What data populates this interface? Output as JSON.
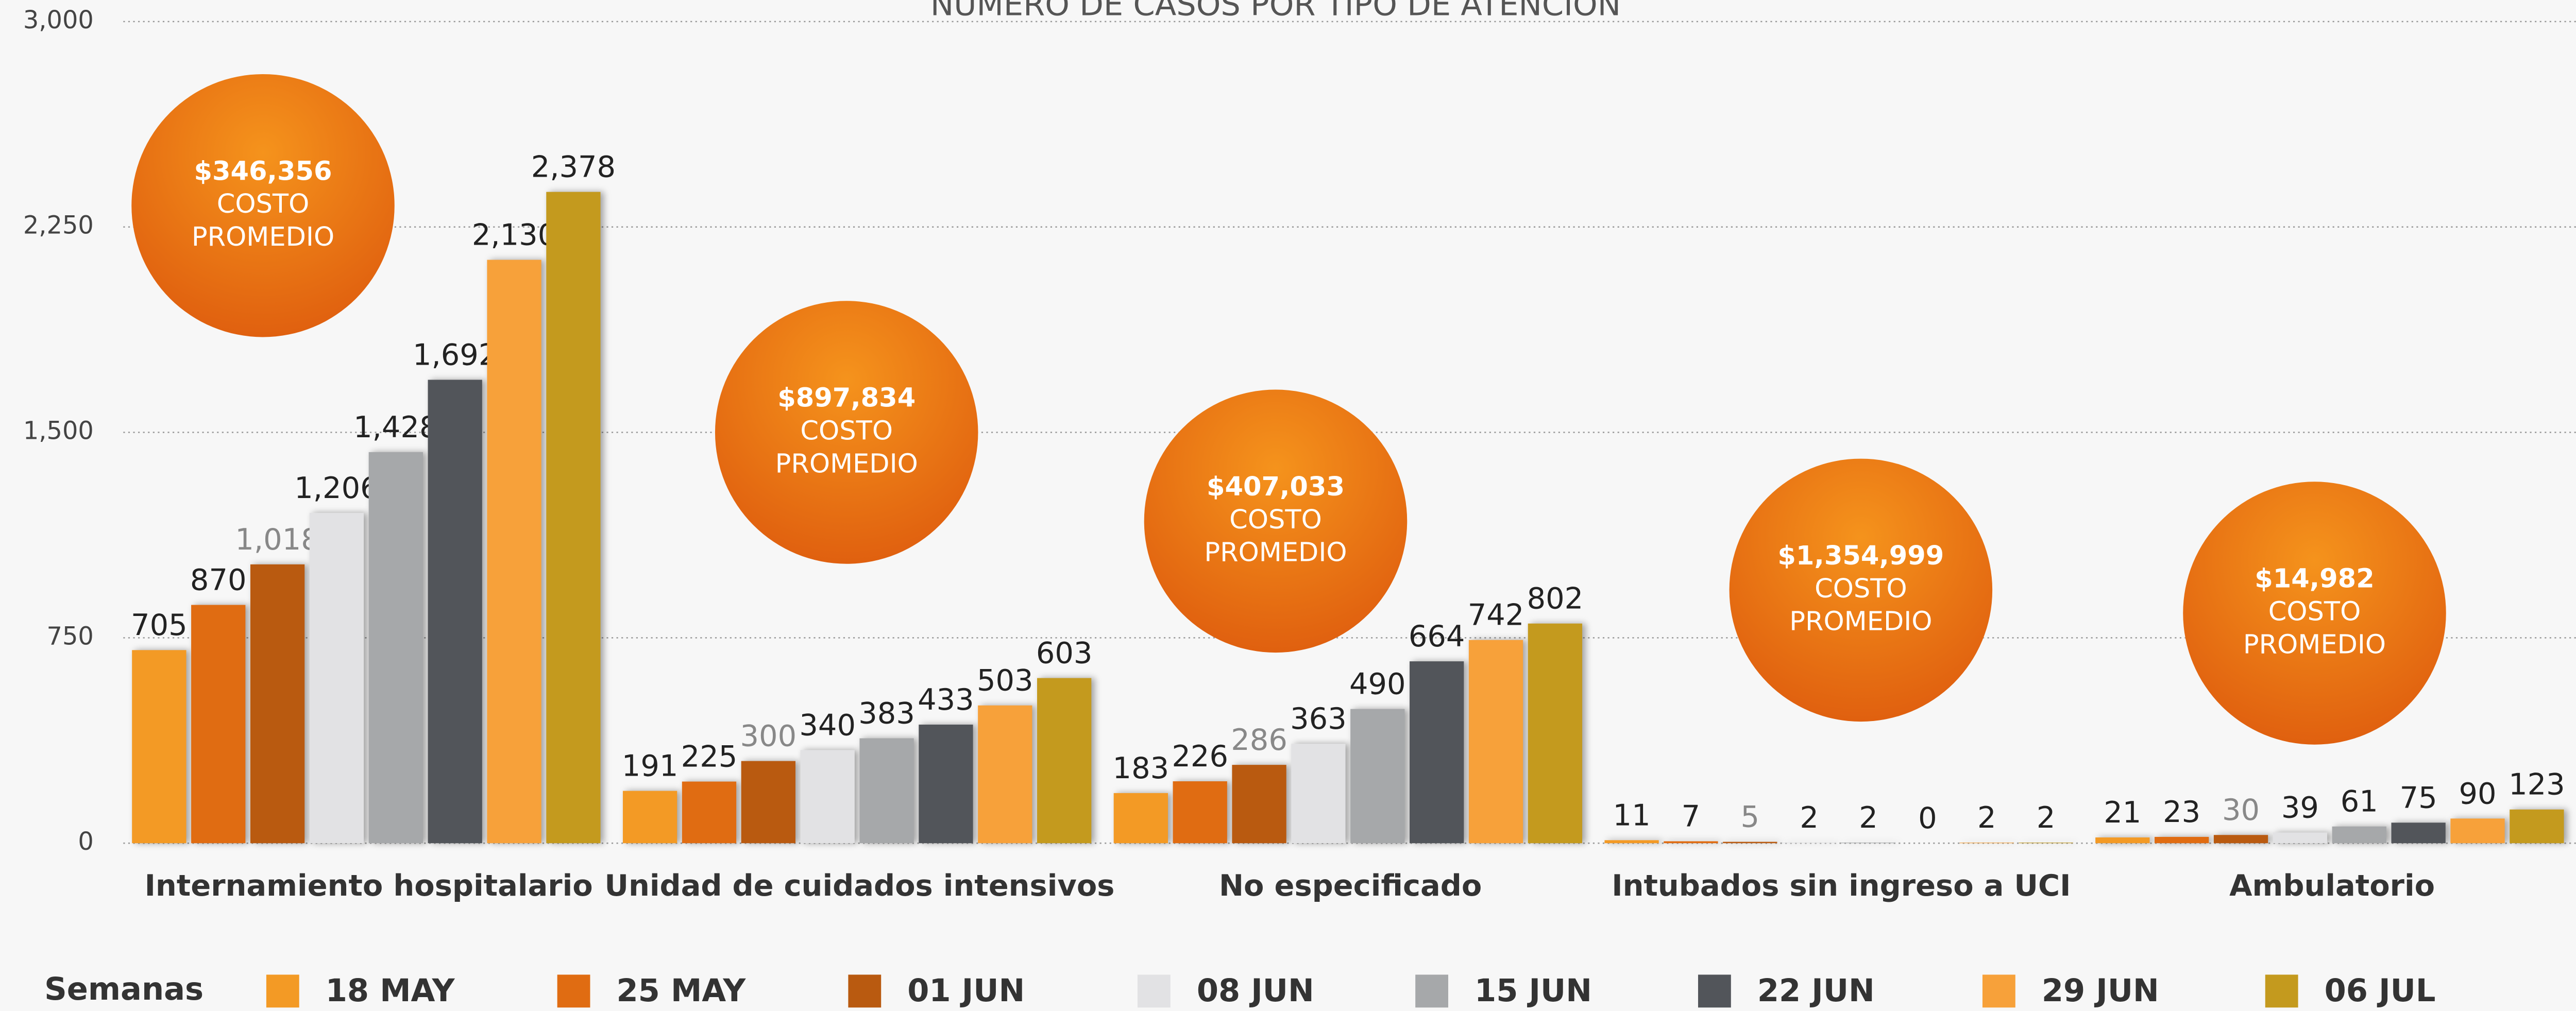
{
  "chart_data": {
    "type": "bar",
    "title": "NÚMERO DE CASOS POR TIPO DE ATENCIÓN",
    "categories": [
      "Internamiento hospitalario",
      "Unidad de cuidados intensivos",
      "No especificado",
      "Intubados sin ingreso a UCI",
      "Ambulatorio"
    ],
    "legend_title": "Semanas",
    "series": [
      {
        "name": "18 MAY",
        "color": "#f39a25",
        "values": [
          705,
          191,
          183,
          11,
          21
        ],
        "value_labels": [
          "705",
          "191",
          "183",
          "11",
          "21"
        ]
      },
      {
        "name": "25 MAY",
        "color": "#e06c12",
        "values": [
          870,
          225,
          226,
          7,
          23
        ],
        "value_labels": [
          "870",
          "225",
          "226",
          "7",
          "23"
        ]
      },
      {
        "name": "01 JUN",
        "color": "#b95a10",
        "values": [
          1018,
          300,
          286,
          5,
          30
        ],
        "value_labels": [
          "1,018",
          "300",
          "286",
          "5",
          "30"
        ]
      },
      {
        "name": "08 JUN",
        "color": "#e2e2e4",
        "values": [
          1206,
          340,
          363,
          2,
          39
        ],
        "value_labels": [
          "1,206",
          "340",
          "363",
          "2",
          "39"
        ]
      },
      {
        "name": "15 JUN",
        "color": "#a6a8aa",
        "values": [
          1428,
          383,
          490,
          2,
          61
        ],
        "value_labels": [
          "1,428",
          "383",
          "490",
          "2",
          "61"
        ]
      },
      {
        "name": "22 JUN",
        "color": "#52555a",
        "values": [
          1692,
          433,
          664,
          0,
          75
        ],
        "value_labels": [
          "1,692",
          "433",
          "664",
          "0",
          "75"
        ]
      },
      {
        "name": "29 JUN",
        "color": "#f7a13a",
        "values": [
          2130,
          503,
          742,
          2,
          90
        ],
        "value_labels": [
          "2,130",
          "503",
          "742",
          "2",
          "90"
        ]
      },
      {
        "name": "06 JUL",
        "color": "#c49a1e",
        "values": [
          2378,
          603,
          802,
          2,
          123
        ],
        "value_labels": [
          "2,378",
          "603",
          "802",
          "2",
          "123"
        ]
      }
    ],
    "ylim": [
      0,
      3000
    ],
    "yticks": [
      0,
      750,
      {
        "value": 1500,
        "label": "1,500"
      },
      {
        "value": 2250,
        "label": "2,250"
      },
      {
        "value": 3000,
        "label": "3,000"
      }
    ],
    "grid": true,
    "annotations": [
      {
        "amount": "$346,356",
        "line1": "COSTO",
        "line2": "PROMEDIO"
      },
      {
        "amount": "$897,834",
        "line1": "COSTO",
        "line2": "PROMEDIO"
      },
      {
        "amount": "$407,033",
        "line1": "COSTO",
        "line2": "PROMEDIO"
      },
      {
        "amount": "$1,354,999",
        "line1": "COSTO",
        "line2": "PROMEDIO"
      },
      {
        "amount": "$14,982",
        "line1": "COSTO",
        "line2": "PROMEDIO"
      }
    ]
  }
}
